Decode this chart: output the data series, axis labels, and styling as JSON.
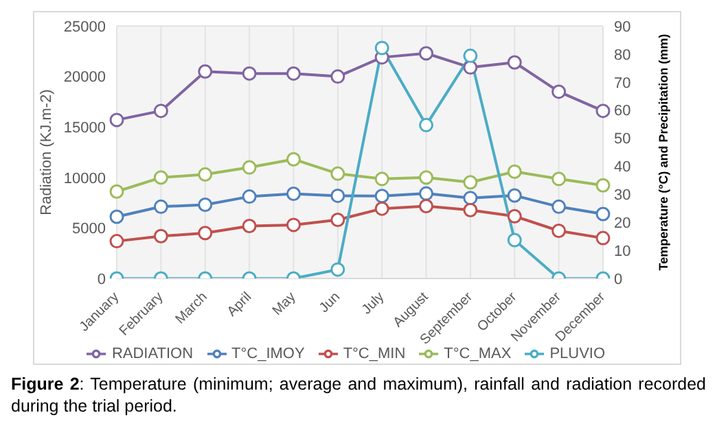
{
  "chart_data": {
    "type": "line",
    "categories": [
      "January",
      "February",
      "March",
      "April",
      "May",
      "Jun",
      "July",
      "August",
      "September",
      "October",
      "November",
      "December"
    ],
    "ylabel": "Radiation (KJ.m-2)",
    "y2label": "Temperature (°C) and Precipitation (mm)",
    "ylim": [
      0,
      25000
    ],
    "yticks": [
      0,
      5000,
      10000,
      15000,
      20000,
      25000
    ],
    "y2lim": [
      0,
      90
    ],
    "y2ticks": [
      0,
      10,
      20,
      30,
      40,
      50,
      60,
      70,
      80,
      90
    ],
    "grid": true,
    "legend": "bottom",
    "marker": "circle",
    "line_style": "solid",
    "series": [
      {
        "name": "RADIATION",
        "color": "#8064a2",
        "values": [
          15700,
          16600,
          20500,
          20300,
          20300,
          20000,
          21900,
          22300,
          20900,
          21400,
          18500,
          16600
        ]
      },
      {
        "name": "T°C_IMOY",
        "color": "#4f81bd",
        "axis": "y2",
        "values": [
          22.0,
          25.6,
          26.3,
          29.2,
          30.2,
          29.5,
          29.4,
          30.3,
          28.7,
          29.6,
          25.6,
          23.0
        ]
      },
      {
        "name": "T°C_MIN",
        "color": "#c0504d",
        "axis": "y2",
        "values": [
          13.3,
          15.1,
          16.2,
          18.7,
          19.1,
          20.9,
          24.9,
          25.8,
          24.4,
          22.2,
          17.0,
          14.4
        ]
      },
      {
        "name": "T°C_MAX",
        "color": "#9bbb59",
        "axis": "y2",
        "values": [
          31.0,
          36.0,
          37.1,
          39.6,
          42.5,
          37.4,
          35.5,
          36.0,
          34.3,
          38.1,
          35.5,
          33.2
        ]
      },
      {
        "name": "PLUVIO",
        "color": "#4bacc6",
        "axis": "y2",
        "values": [
          0,
          0,
          0,
          0,
          0,
          3.2,
          82.2,
          54.7,
          79.4,
          13.7,
          0,
          0
        ]
      }
    ],
    "annotations": [
      "Figure 2: Temperature (minimum; average and maximum), rainfall and radiation recorded during the trial period."
    ]
  }
}
